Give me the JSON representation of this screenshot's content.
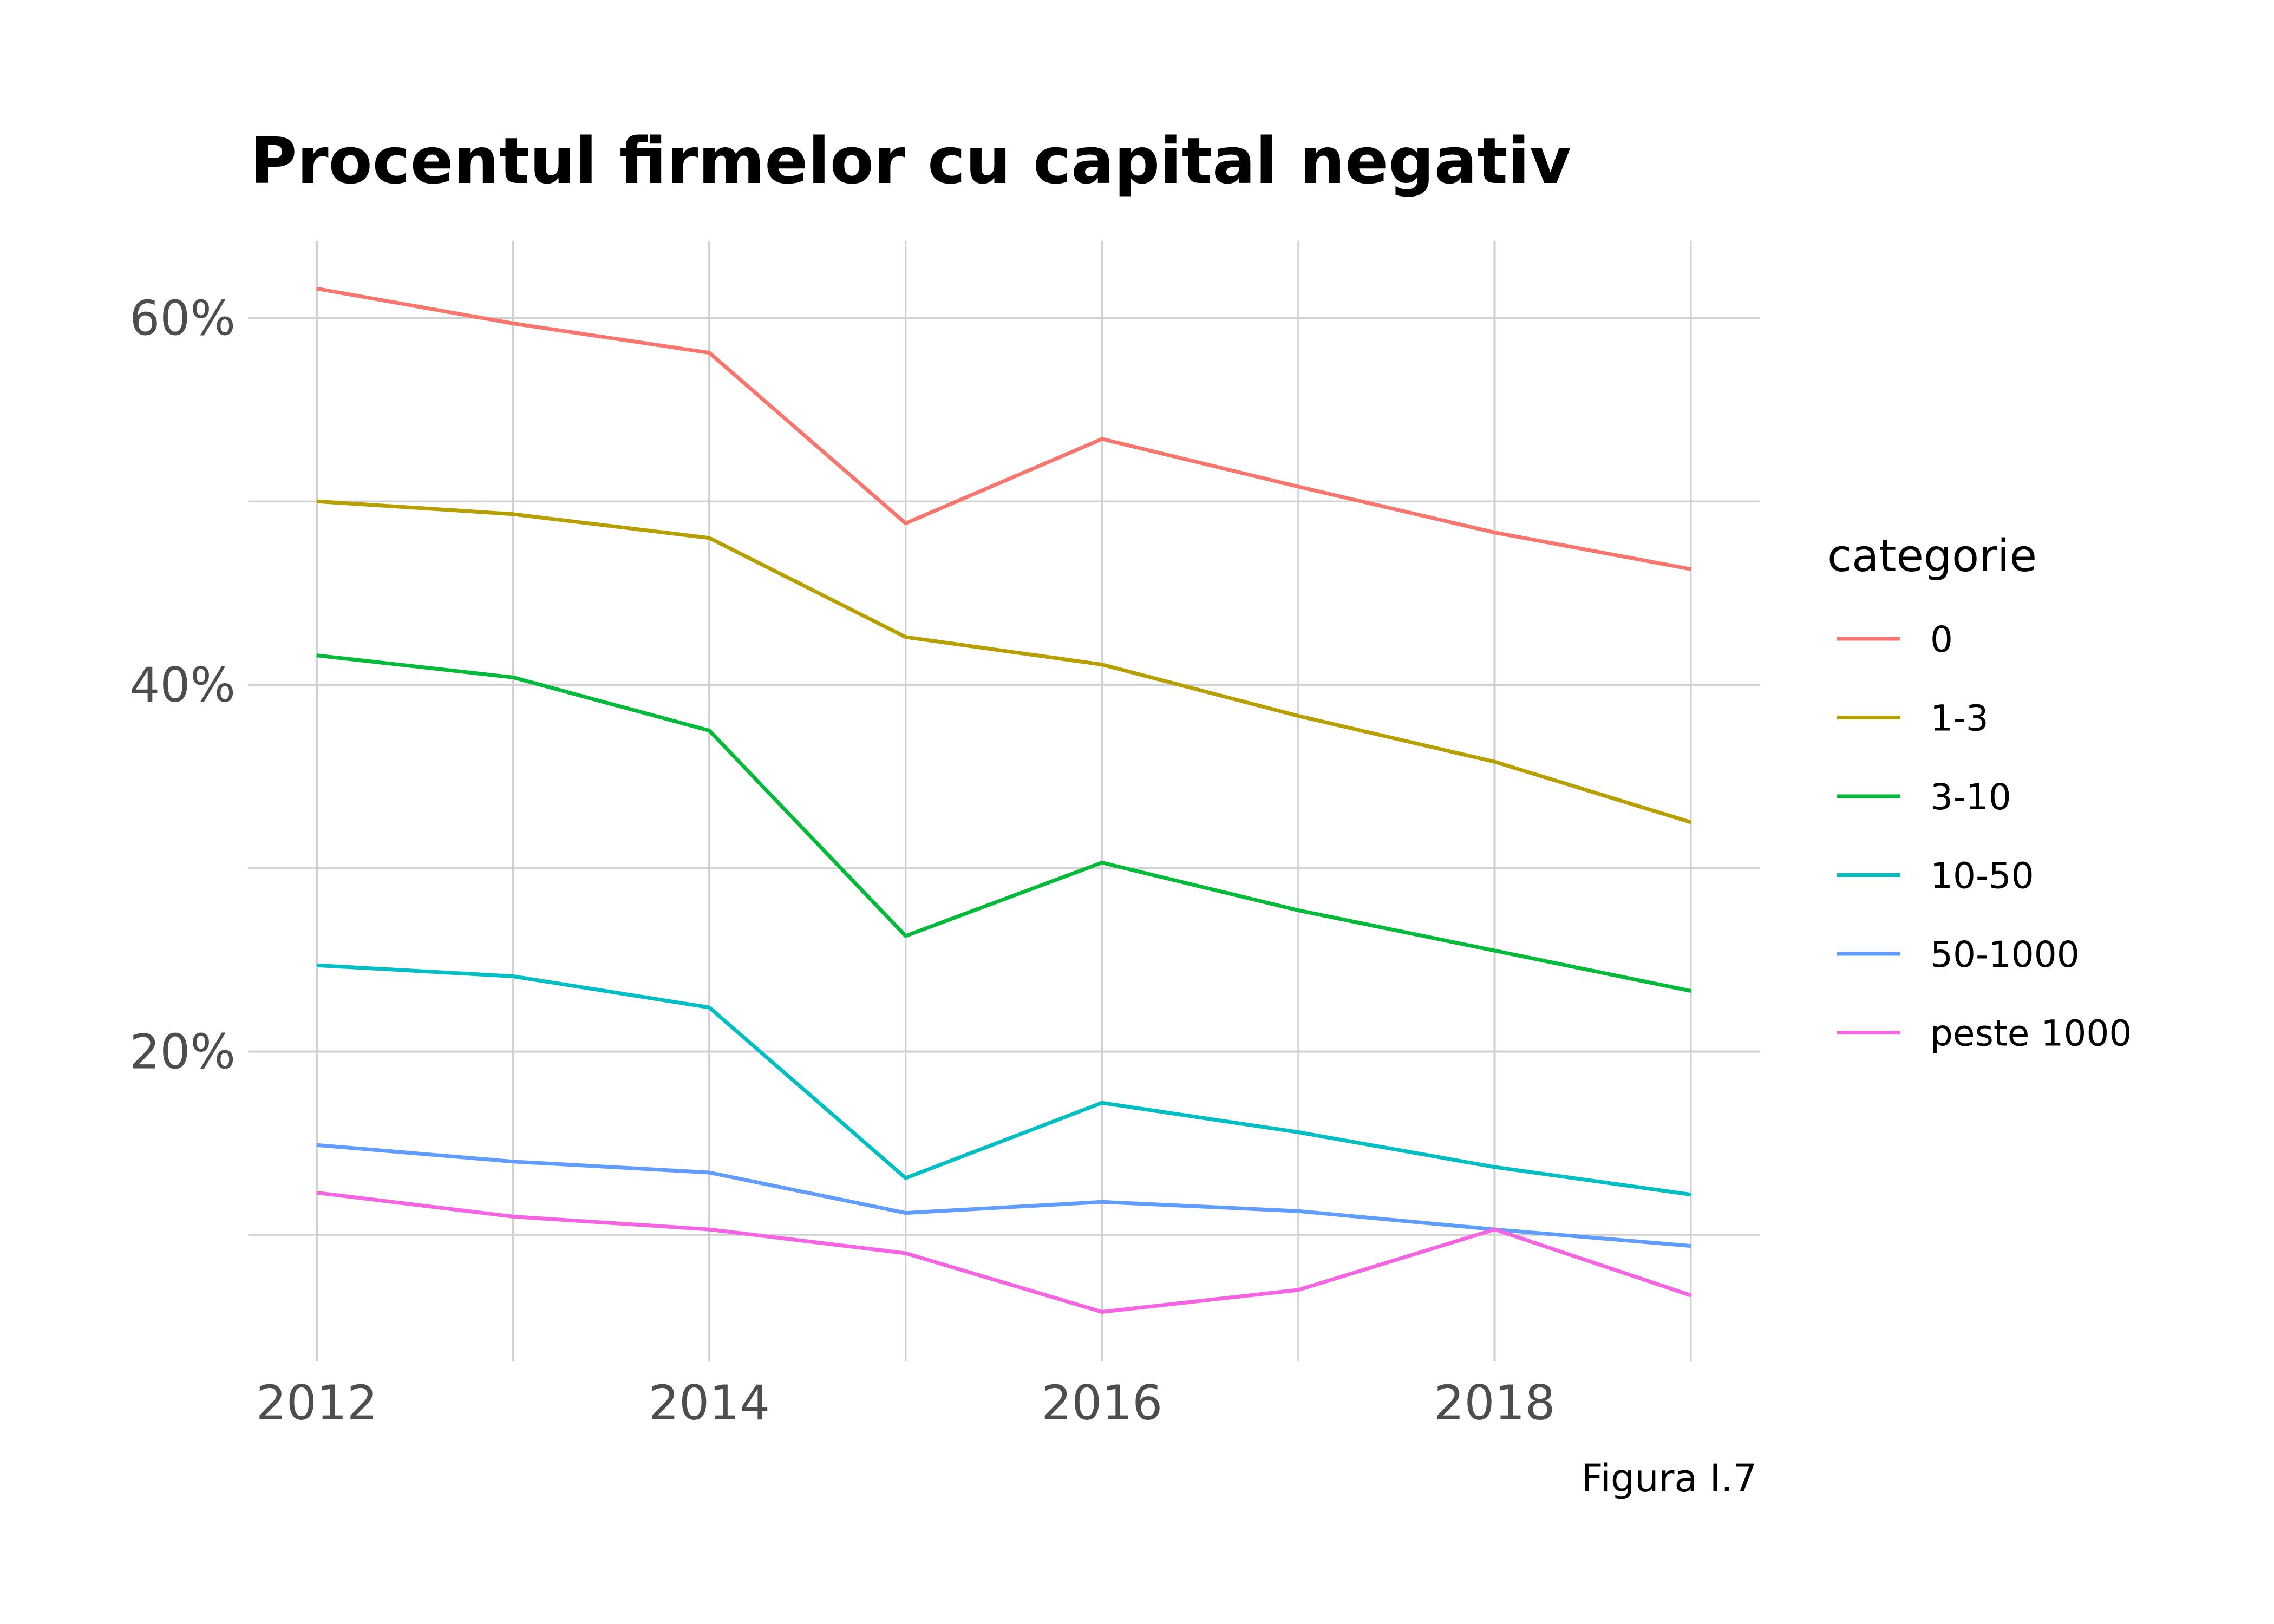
{
  "chart_data": {
    "type": "line",
    "title": "Procentul firmelor cu capital negativ",
    "caption": "Figura I.7",
    "x": [
      2012,
      2013,
      2014,
      2015,
      2016,
      2017,
      2018,
      2019
    ],
    "x_ticks": [
      2012,
      2014,
      2016,
      2018
    ],
    "x_tick_labels": [
      "2012",
      "2014",
      "2016",
      "2018"
    ],
    "xlim": [
      2011.65,
      2019.35
    ],
    "y_ticks": [
      0.2,
      0.4,
      0.6
    ],
    "y_tick_labels": [
      "20%",
      "40%",
      "60%"
    ],
    "ylim": [
      0.031,
      0.642
    ],
    "grid": true,
    "legend": {
      "title": "categorie",
      "position": "right"
    },
    "series": [
      {
        "name": "0",
        "color": "#F8766D",
        "values": [
          0.616,
          0.597,
          0.581,
          0.488,
          0.534,
          0.508,
          0.483,
          0.463
        ]
      },
      {
        "name": "1-3",
        "color": "#B79F00",
        "values": [
          0.5,
          0.493,
          0.48,
          0.426,
          0.411,
          0.383,
          0.358,
          0.325
        ]
      },
      {
        "name": "3-10",
        "color": "#00BA38",
        "values": [
          0.416,
          0.404,
          0.375,
          0.263,
          0.303,
          0.277,
          0.255,
          0.233
        ]
      },
      {
        "name": "10-50",
        "color": "#00BFC4",
        "values": [
          0.247,
          0.241,
          0.224,
          0.131,
          0.172,
          0.156,
          0.137,
          0.122
        ]
      },
      {
        "name": "50-1000",
        "color": "#619CFF",
        "values": [
          0.149,
          0.14,
          0.134,
          0.112,
          0.118,
          0.113,
          0.103,
          0.094
        ]
      },
      {
        "name": "peste 1000",
        "color": "#F564E3",
        "values": [
          0.123,
          0.11,
          0.103,
          0.09,
          0.058,
          0.07,
          0.103,
          0.067
        ]
      }
    ]
  }
}
